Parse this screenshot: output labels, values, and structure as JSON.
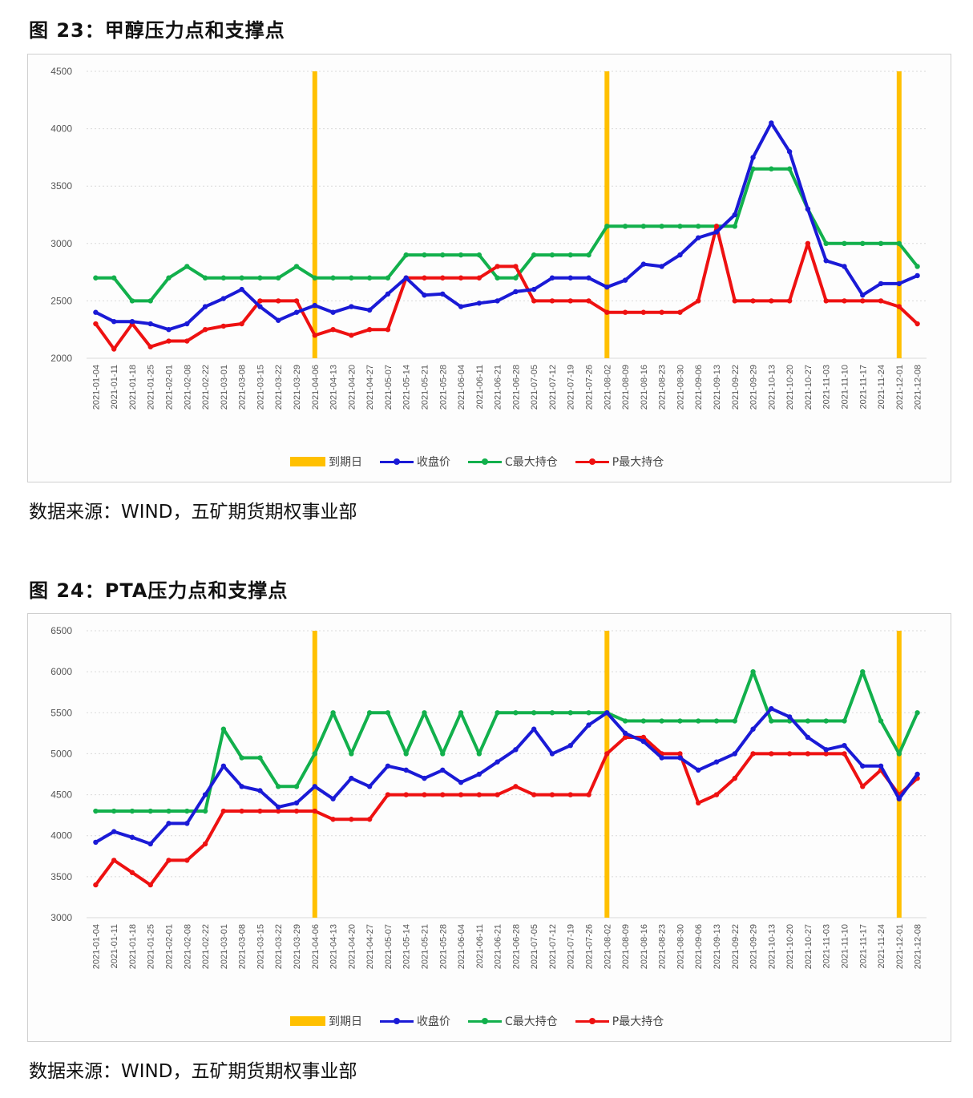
{
  "figures": [
    {
      "title": "图 23：甲醇压力点和支撑点",
      "source": "数据来源：WIND，五矿期货期权事业部"
    },
    {
      "title": "图 24：PTA压力点和支撑点",
      "source": "数据来源：WIND，五矿期货期权事业部"
    }
  ],
  "legend": {
    "expiry": "到期日",
    "close": "收盘价",
    "call": "C最大持仓",
    "put": "P最大持仓"
  },
  "colors": {
    "expiry": "#FFC000",
    "close": "#1A1AD6",
    "call": "#12B04C",
    "put": "#EE1111",
    "grid": "#d9d9d9"
  },
  "chart_data": [
    {
      "type": "line",
      "title": "图 23：甲醇压力点和支撑点",
      "xlabel": "",
      "ylabel": "",
      "ylim": [
        2000,
        4500
      ],
      "yticks": [
        2000,
        2500,
        3000,
        3500,
        4000,
        4500
      ],
      "grid": true,
      "legend_position": "bottom",
      "categories": [
        "2021-01-04",
        "2021-01-11",
        "2021-01-18",
        "2021-01-25",
        "2021-02-01",
        "2021-02-08",
        "2021-02-22",
        "2021-03-01",
        "2021-03-08",
        "2021-03-15",
        "2021-03-22",
        "2021-03-29",
        "2021-04-06",
        "2021-04-13",
        "2021-04-20",
        "2021-04-27",
        "2021-05-07",
        "2021-05-14",
        "2021-05-21",
        "2021-05-28",
        "2021-06-04",
        "2021-06-11",
        "2021-06-21",
        "2021-06-28",
        "2021-07-05",
        "2021-07-12",
        "2021-07-19",
        "2021-07-26",
        "2021-08-02",
        "2021-08-09",
        "2021-08-16",
        "2021-08-23",
        "2021-08-30",
        "2021-09-06",
        "2021-09-13",
        "2021-09-22",
        "2021-09-29",
        "2021-10-13",
        "2021-10-20",
        "2021-10-27",
        "2021-11-03",
        "2021-11-10",
        "2021-11-17",
        "2021-11-24",
        "2021-12-01",
        "2021-12-08"
      ],
      "expiry_dates": [
        "2021-04-06",
        "2021-08-02",
        "2021-12-01"
      ],
      "series": [
        {
          "name": "收盘价",
          "values": [
            2400,
            2320,
            2320,
            2300,
            2250,
            2300,
            2450,
            2520,
            2600,
            2450,
            2330,
            2400,
            2460,
            2400,
            2450,
            2420,
            2560,
            2700,
            2550,
            2560,
            2450,
            2480,
            2500,
            2580,
            2600,
            2700,
            2700,
            2700,
            2620,
            2680,
            2820,
            2800,
            2900,
            3050,
            3100,
            3250,
            3750,
            4050,
            3800,
            3300,
            2850,
            2800,
            2550,
            2650,
            2650,
            2720
          ]
        },
        {
          "name": "C最大持仓",
          "values": [
            2700,
            2700,
            2500,
            2500,
            2700,
            2800,
            2700,
            2700,
            2700,
            2700,
            2700,
            2800,
            2700,
            2700,
            2700,
            2700,
            2700,
            2900,
            2900,
            2900,
            2900,
            2900,
            2700,
            2700,
            2900,
            2900,
            2900,
            2900,
            3150,
            3150,
            3150,
            3150,
            3150,
            3150,
            3150,
            3150,
            3650,
            3650,
            3650,
            3300,
            3000,
            3000,
            3000,
            3000,
            3000,
            2800
          ]
        },
        {
          "name": "P最大持仓",
          "values": [
            2300,
            2080,
            2300,
            2100,
            2150,
            2150,
            2250,
            2280,
            2300,
            2500,
            2500,
            2500,
            2200,
            2250,
            2200,
            2250,
            2250,
            2700,
            2700,
            2700,
            2700,
            2700,
            2800,
            2800,
            2500,
            2500,
            2500,
            2500,
            2400,
            2400,
            2400,
            2400,
            2400,
            2500,
            3150,
            2500,
            2500,
            2500,
            2500,
            3000,
            2500,
            2500,
            2500,
            2500,
            2450,
            2300
          ]
        }
      ]
    },
    {
      "type": "line",
      "title": "图 24：PTA压力点和支撑点",
      "xlabel": "",
      "ylabel": "",
      "ylim": [
        3000,
        6500
      ],
      "yticks": [
        3000,
        3500,
        4000,
        4500,
        5000,
        5500,
        6000,
        6500
      ],
      "grid": true,
      "legend_position": "bottom",
      "categories": [
        "2021-01-04",
        "2021-01-11",
        "2021-01-18",
        "2021-01-25",
        "2021-02-01",
        "2021-02-08",
        "2021-02-22",
        "2021-03-01",
        "2021-03-08",
        "2021-03-15",
        "2021-03-22",
        "2021-03-29",
        "2021-04-06",
        "2021-04-13",
        "2021-04-20",
        "2021-04-27",
        "2021-05-07",
        "2021-05-14",
        "2021-05-21",
        "2021-05-28",
        "2021-06-04",
        "2021-06-11",
        "2021-06-21",
        "2021-06-28",
        "2021-07-05",
        "2021-07-12",
        "2021-07-19",
        "2021-07-26",
        "2021-08-02",
        "2021-08-09",
        "2021-08-16",
        "2021-08-23",
        "2021-08-30",
        "2021-09-06",
        "2021-09-13",
        "2021-09-22",
        "2021-09-29",
        "2021-10-13",
        "2021-10-20",
        "2021-10-27",
        "2021-11-03",
        "2021-11-10",
        "2021-11-17",
        "2021-11-24",
        "2021-12-01",
        "2021-12-08"
      ],
      "expiry_dates": [
        "2021-04-06",
        "2021-08-02",
        "2021-12-01"
      ],
      "series": [
        {
          "name": "收盘价",
          "values": [
            3920,
            4050,
            3980,
            3900,
            4150,
            4150,
            4500,
            4850,
            4600,
            4550,
            4350,
            4400,
            4600,
            4450,
            4700,
            4600,
            4850,
            4800,
            4700,
            4800,
            4650,
            4750,
            4900,
            5050,
            5300,
            5000,
            5100,
            5350,
            5500,
            5250,
            5150,
            4950,
            4950,
            4800,
            4900,
            5000,
            5300,
            5550,
            5450,
            5200,
            5050,
            5100,
            4850,
            4850,
            4450,
            4750
          ]
        },
        {
          "name": "C最大持仓",
          "values": [
            4300,
            4300,
            4300,
            4300,
            4300,
            4300,
            4300,
            5300,
            4950,
            4950,
            4600,
            4600,
            5000,
            5500,
            5000,
            5500,
            5500,
            5000,
            5500,
            5000,
            5500,
            5000,
            5500,
            5500,
            5500,
            5500,
            5500,
            5500,
            5500,
            5400,
            5400,
            5400,
            5400,
            5400,
            5400,
            5400,
            6000,
            5400,
            5400,
            5400,
            5400,
            5400,
            6000,
            5400,
            5000,
            5500
          ]
        },
        {
          "name": "P最大持仓",
          "values": [
            3400,
            3700,
            3550,
            3400,
            3700,
            3700,
            3900,
            4300,
            4300,
            4300,
            4300,
            4300,
            4300,
            4200,
            4200,
            4200,
            4500,
            4500,
            4500,
            4500,
            4500,
            4500,
            4500,
            4600,
            4500,
            4500,
            4500,
            4500,
            5000,
            5200,
            5200,
            5000,
            5000,
            4400,
            4500,
            4700,
            5000,
            5000,
            5000,
            5000,
            5000,
            5000,
            4600,
            4800,
            4500,
            4700
          ]
        }
      ]
    }
  ]
}
